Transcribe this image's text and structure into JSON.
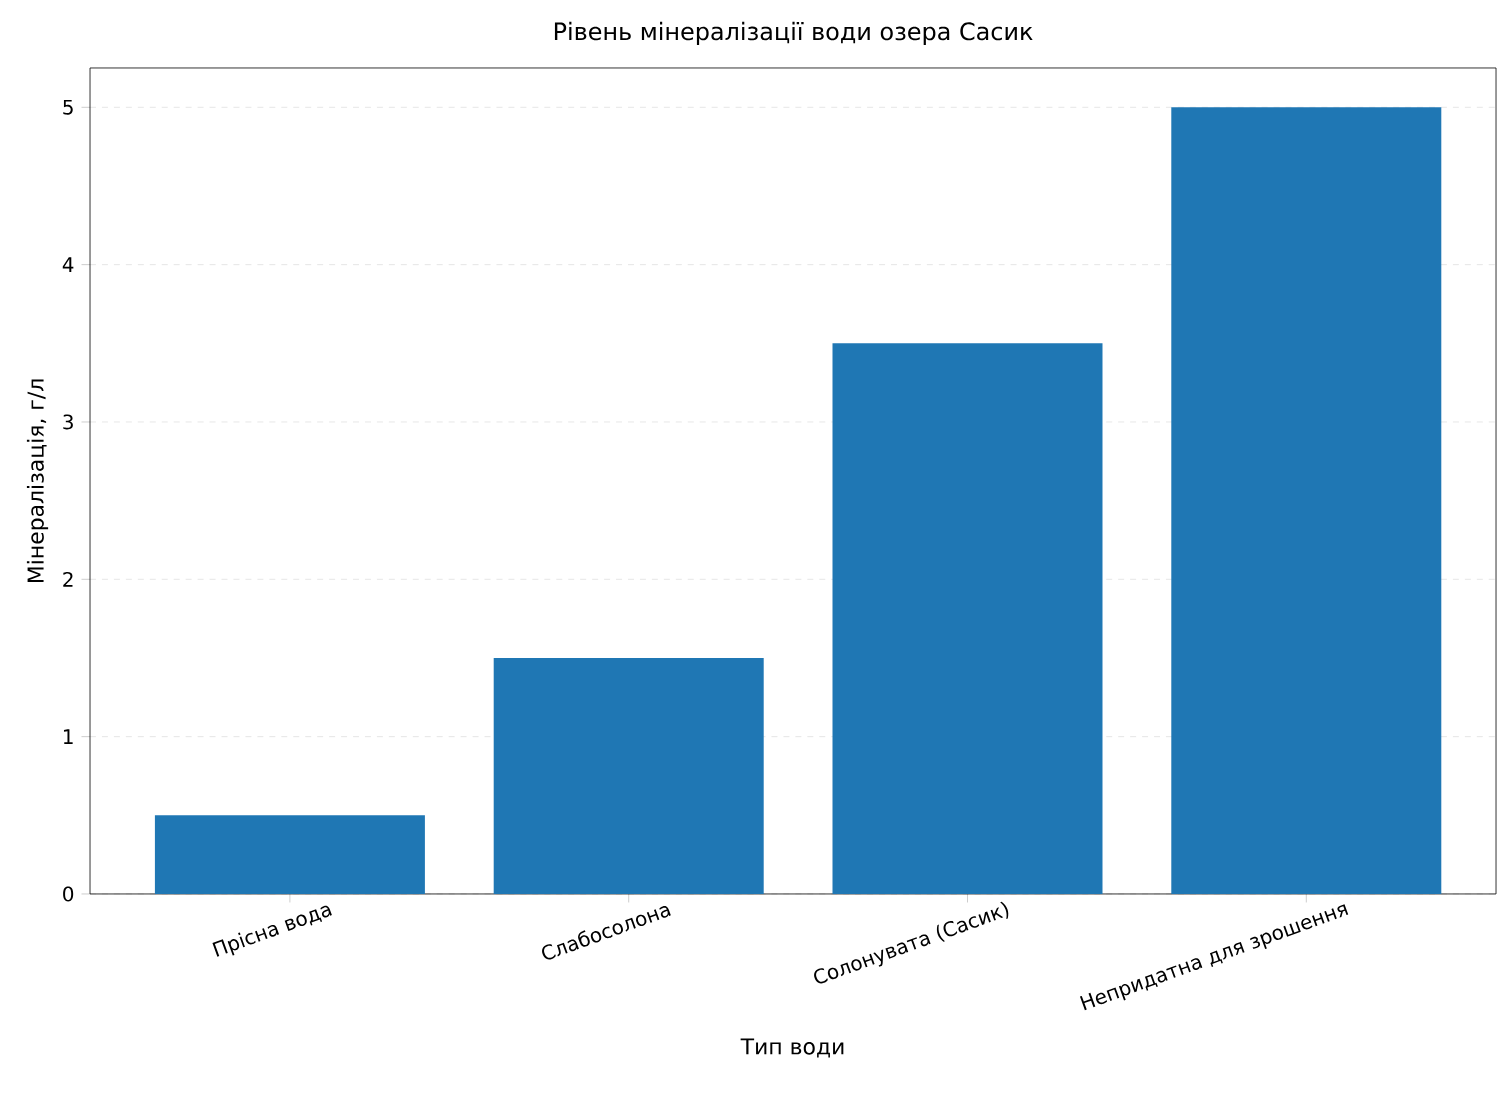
{
  "chart_data": {
    "type": "bar",
    "title": "Рівень мінералізації води озера Сасик",
    "xlabel": "Тип води",
    "ylabel": "Мінералізація, г/л",
    "categories": [
      "Прісна вода",
      "Слабосолона",
      "Солонувата (Сасик)",
      "Непридатна для зрошення"
    ],
    "values": [
      0.5,
      1.5,
      3.5,
      5
    ],
    "color": "#1f77b4",
    "ylim": [
      0,
      5.25
    ],
    "yticks": [
      0,
      1,
      2,
      3,
      4,
      5
    ],
    "grid": "y"
  }
}
